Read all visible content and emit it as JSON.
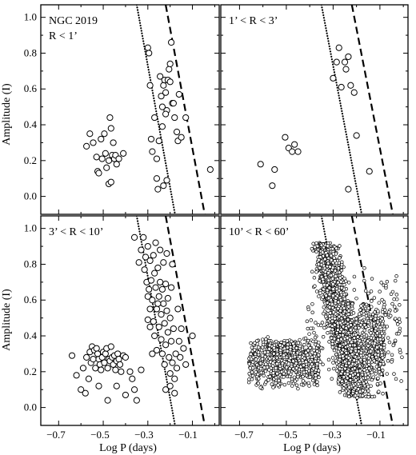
{
  "chart_data": [
    {
      "type": "scatter",
      "panel_label_lines": [
        "NGC 2019",
        "R < 1’"
      ],
      "xlim": [
        -0.78,
        0.02
      ],
      "ylim": [
        -0.1,
        1.07
      ],
      "series": [
        {
          "points": [
            [
              -0.575,
              0.28
            ],
            [
              -0.56,
              0.35
            ],
            [
              -0.545,
              0.3
            ],
            [
              -0.53,
              0.22
            ],
            [
              -0.525,
              0.14
            ],
            [
              -0.52,
              0.13
            ],
            [
              -0.51,
              0.32
            ],
            [
              -0.505,
              0.21
            ],
            [
              -0.495,
              0.35
            ],
            [
              -0.49,
              0.24
            ],
            [
              -0.485,
              0.16
            ],
            [
              -0.475,
              0.2
            ],
            [
              -0.47,
              0.44
            ],
            [
              -0.465,
              0.38
            ],
            [
              -0.46,
              0.23
            ],
            [
              -0.455,
              0.3
            ],
            [
              -0.45,
              0.21
            ],
            [
              -0.445,
              0.23
            ],
            [
              -0.44,
              0.18
            ],
            [
              -0.43,
              0.21
            ],
            [
              -0.41,
              0.24
            ],
            [
              -0.475,
              0.07
            ],
            [
              -0.465,
              0.08
            ],
            [
              -0.3,
              0.83
            ],
            [
              -0.295,
              0.8
            ],
            [
              -0.29,
              0.62
            ],
            [
              -0.285,
              0.32
            ],
            [
              -0.28,
              0.25
            ],
            [
              -0.27,
              0.44
            ],
            [
              -0.26,
              0.1
            ],
            [
              -0.255,
              0.04
            ],
            [
              -0.25,
              0.31
            ],
            [
              -0.245,
              0.67
            ],
            [
              -0.24,
              0.56
            ],
            [
              -0.235,
              0.5
            ],
            [
              -0.23,
              0.62
            ],
            [
              -0.225,
              0.65
            ],
            [
              -0.22,
              0.58
            ],
            [
              -0.215,
              0.48
            ],
            [
              -0.21,
              0.65
            ],
            [
              -0.205,
              0.71
            ],
            [
              -0.2,
              0.64
            ],
            [
              -0.195,
              0.86
            ],
            [
              -0.19,
              0.52
            ],
            [
              -0.185,
              0.52
            ],
            [
              -0.18,
              0.44
            ],
            [
              -0.17,
              0.36
            ],
            [
              -0.165,
              0.31
            ],
            [
              -0.16,
              0.57
            ],
            [
              -0.15,
              0.33
            ],
            [
              -0.13,
              0.44
            ],
            [
              -0.26,
              0.21
            ],
            [
              -0.23,
              0.06
            ],
            [
              -0.215,
              0.09
            ],
            [
              -0.2,
              0.74
            ],
            [
              -0.235,
              0.39
            ],
            [
              -0.22,
              0.46
            ],
            [
              -0.02,
              0.15
            ]
          ]
        }
      ],
      "ref_lines": [
        {
          "style": "dotted",
          "x": [
            -0.35,
            -0.178
          ],
          "y": [
            1.07,
            -0.1
          ]
        },
        {
          "style": "dashed",
          "x": [
            -0.22,
            -0.045
          ],
          "y": [
            1.07,
            -0.1
          ]
        }
      ]
    },
    {
      "type": "scatter",
      "panel_label_lines": [
        "1’ < R < 3’"
      ],
      "xlim": [
        -0.78,
        0.02
      ],
      "ylim": [
        -0.1,
        1.07
      ],
      "series": [
        {
          "points": [
            [
              -0.61,
              0.18
            ],
            [
              -0.56,
              0.06
            ],
            [
              -0.55,
              0.15
            ],
            [
              -0.505,
              0.33
            ],
            [
              -0.49,
              0.27
            ],
            [
              -0.475,
              0.25
            ],
            [
              -0.465,
              0.29
            ],
            [
              -0.45,
              0.25
            ],
            [
              -0.3,
              0.66
            ],
            [
              -0.285,
              0.75
            ],
            [
              -0.275,
              0.83
            ],
            [
              -0.265,
              0.61
            ],
            [
              -0.25,
              0.75
            ],
            [
              -0.235,
              0.78
            ],
            [
              -0.245,
              0.71
            ],
            [
              -0.225,
              0.62
            ],
            [
              -0.21,
              0.58
            ],
            [
              -0.2,
              0.34
            ],
            [
              -0.235,
              0.04
            ],
            [
              -0.145,
              0.14
            ]
          ]
        }
      ],
      "ref_lines": [
        {
          "style": "dotted",
          "x": [
            -0.35,
            -0.178
          ],
          "y": [
            1.07,
            -0.1
          ]
        },
        {
          "style": "dashed",
          "x": [
            -0.22,
            -0.045
          ],
          "y": [
            1.07,
            -0.1
          ]
        }
      ]
    },
    {
      "type": "scatter",
      "panel_label_lines": [
        "3’ < R < 10’"
      ],
      "xlim": [
        -0.78,
        0.02
      ],
      "ylim": [
        -0.1,
        1.07
      ],
      "series": [
        {
          "points": [
            [
              -0.64,
              0.29
            ],
            [
              -0.62,
              0.18
            ],
            [
              -0.6,
              0.1
            ],
            [
              -0.59,
              0.22
            ],
            [
              -0.58,
              0.08
            ],
            [
              -0.575,
              0.28
            ],
            [
              -0.565,
              0.16
            ],
            [
              -0.56,
              0.31
            ],
            [
              -0.555,
              0.25
            ],
            [
              -0.55,
              0.34
            ],
            [
              -0.545,
              0.27
            ],
            [
              -0.54,
              0.32
            ],
            [
              -0.535,
              0.22
            ],
            [
              -0.53,
              0.33
            ],
            [
              -0.525,
              0.3
            ],
            [
              -0.52,
              0.27
            ],
            [
              -0.515,
              0.24
            ],
            [
              -0.51,
              0.21
            ],
            [
              -0.505,
              0.28
            ],
            [
              -0.5,
              0.31
            ],
            [
              -0.495,
              0.25
            ],
            [
              -0.49,
              0.3
            ],
            [
              -0.485,
              0.33
            ],
            [
              -0.48,
              0.22
            ],
            [
              -0.475,
              0.27
            ],
            [
              -0.47,
              0.26
            ],
            [
              -0.465,
              0.34
            ],
            [
              -0.46,
              0.28
            ],
            [
              -0.455,
              0.24
            ],
            [
              -0.45,
              0.29
            ],
            [
              -0.445,
              0.21
            ],
            [
              -0.44,
              0.26
            ],
            [
              -0.435,
              0.3
            ],
            [
              -0.43,
              0.27
            ],
            [
              -0.425,
              0.24
            ],
            [
              -0.42,
              0.2
            ],
            [
              -0.41,
              0.29
            ],
            [
              -0.4,
              0.28
            ],
            [
              -0.38,
              0.2
            ],
            [
              -0.37,
              0.16
            ],
            [
              -0.36,
              0.1
            ],
            [
              -0.35,
              0.04
            ],
            [
              -0.48,
              0.04
            ],
            [
              -0.44,
              0.12
            ],
            [
              -0.52,
              0.12
            ],
            [
              -0.4,
              0.07
            ],
            [
              -0.33,
              0.21
            ],
            [
              -0.36,
              0.95
            ],
            [
              -0.34,
              0.81
            ],
            [
              -0.33,
              0.88
            ],
            [
              -0.32,
              0.95
            ],
            [
              -0.315,
              0.77
            ],
            [
              -0.31,
              0.84
            ],
            [
              -0.305,
              0.7
            ],
            [
              -0.3,
              0.62
            ],
            [
              -0.3,
              0.9
            ],
            [
              -0.295,
              0.66
            ],
            [
              -0.29,
              0.82
            ],
            [
              -0.29,
              0.55
            ],
            [
              -0.285,
              0.71
            ],
            [
              -0.28,
              0.6
            ],
            [
              -0.275,
              0.85
            ],
            [
              -0.275,
              0.48
            ],
            [
              -0.27,
              0.75
            ],
            [
              -0.27,
              0.4
            ],
            [
              -0.265,
              0.67
            ],
            [
              -0.265,
              0.92
            ],
            [
              -0.26,
              0.55
            ],
            [
              -0.26,
              0.32
            ],
            [
              -0.255,
              0.78
            ],
            [
              -0.25,
              0.62
            ],
            [
              -0.25,
              0.45
            ],
            [
              -0.245,
              0.88
            ],
            [
              -0.245,
              0.7
            ],
            [
              -0.24,
              0.52
            ],
            [
              -0.24,
              0.38
            ],
            [
              -0.235,
              0.66
            ],
            [
              -0.235,
              0.3
            ],
            [
              -0.23,
              0.58
            ],
            [
              -0.23,
              0.81
            ],
            [
              -0.225,
              0.47
            ],
            [
              -0.225,
              0.24
            ],
            [
              -0.22,
              0.69
            ],
            [
              -0.22,
              0.35
            ],
            [
              -0.215,
              0.54
            ],
            [
              -0.21,
              0.42
            ],
            [
              -0.21,
              0.61
            ],
            [
              -0.205,
              0.28
            ],
            [
              -0.2,
              0.5
            ],
            [
              -0.2,
              0.19
            ],
            [
              -0.195,
              0.37
            ],
            [
              -0.19,
              0.25
            ],
            [
              -0.185,
              0.44
            ],
            [
              -0.18,
              0.16
            ],
            [
              -0.175,
              0.3
            ],
            [
              -0.17,
              0.22
            ],
            [
              -0.165,
              0.55
            ],
            [
              -0.16,
              0.37
            ],
            [
              -0.155,
              0.28
            ],
            [
              -0.15,
              0.44
            ],
            [
              -0.14,
              0.33
            ],
            [
              -0.13,
              0.24
            ],
            [
              -0.1,
              0.4
            ],
            [
              -0.215,
              0.86
            ],
            [
              -0.195,
              0.67
            ],
            [
              -0.19,
              0.8
            ],
            [
              -0.255,
              0.58
            ],
            [
              -0.22,
              0.1
            ],
            [
              -0.2,
              0.12
            ],
            [
              -0.18,
              0.08
            ],
            [
              -0.28,
              0.3
            ],
            [
              -0.29,
              0.45
            ],
            [
              -0.3,
              0.49
            ]
          ]
        }
      ],
      "ref_lines": [
        {
          "style": "dotted",
          "x": [
            -0.35,
            -0.178
          ],
          "y": [
            1.07,
            -0.1
          ]
        },
        {
          "style": "dashed",
          "x": [
            -0.22,
            -0.045
          ],
          "y": [
            1.07,
            -0.1
          ]
        }
      ]
    },
    {
      "type": "scatter",
      "panel_label_lines": [
        "10’ < R < 60’"
      ],
      "xlim": [
        -0.78,
        0.02
      ],
      "ylim": [
        -0.1,
        1.07
      ],
      "series": [
        {
          "clouds": [
            {
              "n": 550,
              "x": [
                -0.66,
                -0.36
              ],
              "y": [
                0.1,
                0.4
              ],
              "seed": 7
            },
            {
              "n": 220,
              "x": [
                -0.58,
                -0.44
              ],
              "y": [
                0.27,
                0.38
              ],
              "seed": 11
            },
            {
              "n": 1500,
              "cx": -0.27,
              "y_top": 0.92,
              "y_bottom": 0.06,
              "slope": -0.16,
              "half_width": 0.065,
              "seed": 3
            },
            {
              "n": 650,
              "x": [
                -0.28,
                -0.08
              ],
              "y": [
                0.04,
                0.6
              ],
              "seed": 19
            },
            {
              "n": 260,
              "x": [
                -0.42,
                0.0
              ],
              "y": [
                0.1,
                0.8
              ],
              "seed": 29
            }
          ]
        }
      ],
      "ref_lines": [
        {
          "style": "dotted",
          "x": [
            -0.35,
            -0.178
          ],
          "y": [
            1.07,
            -0.1
          ]
        },
        {
          "style": "dashed",
          "x": [
            -0.22,
            -0.045
          ],
          "y": [
            1.07,
            -0.1
          ]
        }
      ]
    }
  ],
  "axes": {
    "x_ticks": [
      -0.7,
      -0.5,
      -0.3,
      -0.1
    ],
    "x_tick_labels": [
      "−0.7",
      "−0.5",
      "−0.3",
      "−0.1"
    ],
    "y_ticks": [
      0.0,
      0.2,
      0.4,
      0.6,
      0.8,
      1.0
    ],
    "y_tick_labels": [
      "0.0",
      "0.2",
      "0.4",
      "0.6",
      "0.8",
      "1.0"
    ],
    "xlabel": "Log P (days)",
    "ylabel": "Amplitude (I)"
  }
}
